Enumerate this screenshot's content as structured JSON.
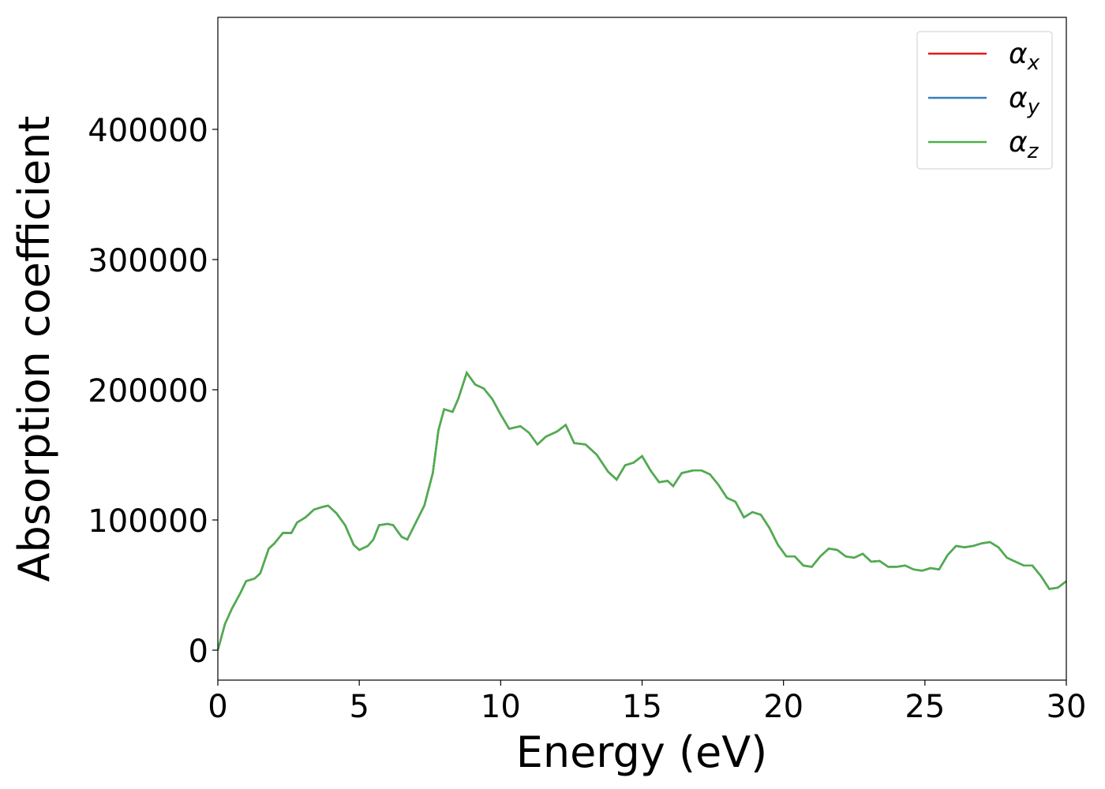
{
  "chart_data": {
    "type": "line",
    "xlabel": "Energy (eV)",
    "ylabel": "Absorption coefficient",
    "x": [
      0,
      0.25,
      0.5,
      0.8,
      1,
      1.3,
      1.5,
      1.8,
      2,
      2.3,
      2.6,
      2.8,
      3.1,
      3.4,
      3.7,
      3.9,
      4.2,
      4.5,
      4.8,
      5,
      5.3,
      5.5,
      5.7,
      6,
      6.2,
      6.5,
      6.7,
      7,
      7.3,
      7.6,
      7.8,
      8,
      8.3,
      8.5,
      8.8,
      9.1,
      9.4,
      9.7,
      10,
      10.3,
      10.7,
      11,
      11.3,
      11.6,
      12,
      12.3,
      12.6,
      13,
      13.4,
      13.8,
      14.1,
      14.4,
      14.7,
      15,
      15.3,
      15.6,
      15.9,
      16.1,
      16.4,
      16.8,
      17.1,
      17.4,
      17.7,
      18,
      18.3,
      18.6,
      18.9,
      19.2,
      19.5,
      19.8,
      20.1,
      20.4,
      20.7,
      21,
      21.3,
      21.6,
      21.9,
      22.2,
      22.5,
      22.8,
      23.1,
      23.4,
      23.7,
      24,
      24.3,
      24.6,
      24.9,
      25.2,
      25.5,
      25.8,
      26.1,
      26.4,
      26.7,
      27,
      27.3,
      27.6,
      27.9,
      28.2,
      28.5,
      28.8,
      29.1,
      29.4,
      29.7,
      30
    ],
    "series": [
      {
        "name": "αx",
        "color": "#e41a1c",
        "values": [
          0,
          20000,
          32000,
          44000,
          53000,
          55000,
          59000,
          78000,
          82000,
          90000,
          90000,
          98000,
          102000,
          108000,
          110000,
          111000,
          105000,
          96000,
          81000,
          77000,
          80000,
          85000,
          96000,
          97000,
          96000,
          87000,
          85000,
          98000,
          111000,
          136000,
          169000,
          185000,
          183000,
          193000,
          213000,
          204000,
          201000,
          193000,
          181000,
          170000,
          172000,
          167000,
          158000,
          164000,
          168000,
          173000,
          159000,
          158000,
          150000,
          137000,
          131000,
          142000,
          144000,
          149000,
          138000,
          129000,
          130000,
          126000,
          136000,
          138000,
          138000,
          135000,
          127000,
          117000,
          114000,
          102000,
          106000,
          104000,
          94000,
          81000,
          72000,
          72000,
          65000,
          64000,
          72000,
          78000,
          77000,
          72000,
          71000,
          74000,
          68000,
          68500,
          64000,
          64000,
          65000,
          62000,
          61000,
          63000,
          62000,
          73000,
          80000,
          79000,
          80000,
          82000,
          83000,
          79000,
          71000,
          68000,
          65000,
          65000,
          57000,
          47000,
          48000,
          53000
        ]
      },
      {
        "name": "αy",
        "color": "#377eb8",
        "values": [
          0,
          20000,
          32000,
          44000,
          53000,
          55000,
          59000,
          78000,
          82000,
          90000,
          90000,
          98000,
          102000,
          108000,
          110000,
          111000,
          105000,
          96000,
          81000,
          77000,
          80000,
          85000,
          96000,
          97000,
          96000,
          87000,
          85000,
          98000,
          111000,
          136000,
          169000,
          185000,
          183000,
          193000,
          213000,
          204000,
          201000,
          193000,
          181000,
          170000,
          172000,
          167000,
          158000,
          164000,
          168000,
          173000,
          159000,
          158000,
          150000,
          137000,
          131000,
          142000,
          144000,
          149000,
          138000,
          129000,
          130000,
          126000,
          136000,
          138000,
          138000,
          135000,
          127000,
          117000,
          114000,
          102000,
          106000,
          104000,
          94000,
          81000,
          72000,
          72000,
          65000,
          64000,
          72000,
          78000,
          77000,
          72000,
          71000,
          74000,
          68000,
          68500,
          64000,
          64000,
          65000,
          62000,
          61000,
          63000,
          62000,
          73000,
          80000,
          79000,
          80000,
          82000,
          83000,
          79000,
          71000,
          68000,
          65000,
          65000,
          57000,
          47000,
          48000,
          53000
        ]
      },
      {
        "name": "αz",
        "color": "#4daf4a",
        "values": [
          0,
          20000,
          32000,
          44000,
          53000,
          55000,
          59000,
          78000,
          82000,
          90000,
          90000,
          98000,
          102000,
          108000,
          110000,
          111000,
          105000,
          96000,
          81000,
          77000,
          80000,
          85000,
          96000,
          97000,
          96000,
          87000,
          85000,
          98000,
          111000,
          136000,
          169000,
          185000,
          183000,
          193000,
          213000,
          204000,
          201000,
          193000,
          181000,
          170000,
          172000,
          167000,
          158000,
          164000,
          168000,
          173000,
          159000,
          158000,
          150000,
          137000,
          131000,
          142000,
          144000,
          149000,
          138000,
          129000,
          130000,
          126000,
          136000,
          138000,
          138000,
          135000,
          127000,
          117000,
          114000,
          102000,
          106000,
          104000,
          94000,
          81000,
          72000,
          72000,
          65000,
          64000,
          72000,
          78000,
          77000,
          72000,
          71000,
          74000,
          68000,
          68500,
          64000,
          64000,
          65000,
          62000,
          61000,
          63000,
          62000,
          73000,
          80000,
          79000,
          80000,
          82000,
          83000,
          79000,
          71000,
          68000,
          65000,
          65000,
          57000,
          47000,
          48000,
          53000
        ]
      }
    ],
    "xlim": [
      0,
      30
    ],
    "xticks": [
      0,
      5,
      10,
      15,
      20,
      25,
      30
    ],
    "ylim": [
      -23000,
      486000
    ],
    "yticks": [
      0,
      100000,
      200000,
      300000,
      400000
    ],
    "grid": false,
    "legend": "upper right"
  }
}
